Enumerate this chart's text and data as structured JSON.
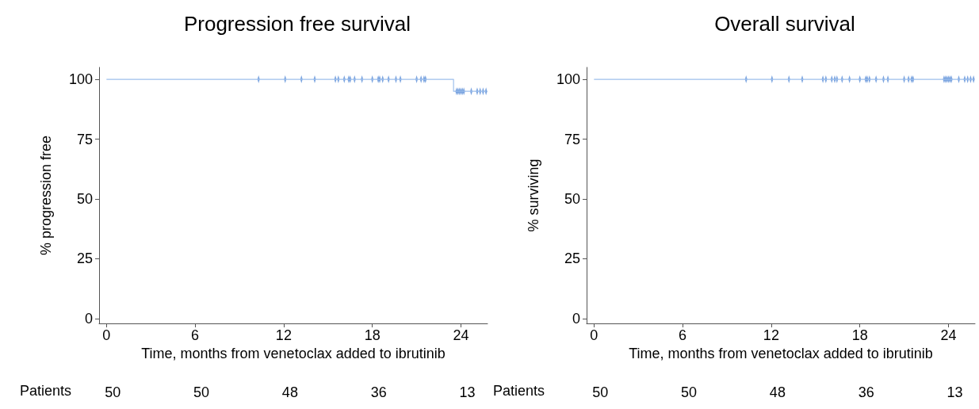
{
  "chart_data": [
    {
      "type": "step",
      "title": "Progression free survival",
      "xlabel": "Time, months from venetoclax added to ibrutinib",
      "ylabel": "% progression free",
      "xlim": [
        -0.5,
        25.8
      ],
      "xticks": [
        0,
        6,
        12,
        18,
        24
      ],
      "ylim": [
        -2,
        105
      ],
      "yticks": [
        0,
        25,
        50,
        75,
        100
      ],
      "grid": false,
      "series": [
        {
          "color": "#9dbfec",
          "x": [
            0,
            23.5,
            25.7
          ],
          "values": [
            100,
            95,
            95
          ]
        },
        {
          "type": "scatter",
          "marker": "diamond",
          "color": "#5b8fd8",
          "x": [
            10.3,
            12.1,
            13.2,
            14.1,
            15.5,
            15.7,
            16.1,
            16.4,
            16.5,
            16.8,
            17.3,
            18.0,
            18.4,
            18.5,
            18.7,
            19.1,
            19.6,
            19.9,
            21.0,
            21.3,
            21.5,
            21.6,
            23.7,
            23.8,
            23.9,
            24.0,
            24.1,
            24.2,
            24.7,
            25.1,
            25.3,
            25.5,
            25.7
          ],
          "values": [
            100,
            100,
            100,
            100,
            100,
            100,
            100,
            100,
            100,
            100,
            100,
            100,
            100,
            100,
            100,
            100,
            100,
            100,
            100,
            100,
            100,
            100,
            95,
            95,
            95,
            95,
            95,
            95,
            95,
            95,
            95,
            95,
            95
          ]
        }
      ],
      "annotations": [
        "Patients",
        "50",
        "50",
        "48",
        "36",
        "13"
      ]
    },
    {
      "type": "step",
      "title": "Overall survival",
      "xlabel": "Time, months from venetoclax added to ibrutinib",
      "ylabel": "% surviving",
      "xlim": [
        -0.5,
        25.8
      ],
      "xticks": [
        0,
        6,
        12,
        18,
        24
      ],
      "ylim": [
        -2,
        105
      ],
      "yticks": [
        0,
        25,
        50,
        75,
        100
      ],
      "grid": false,
      "series": [
        {
          "color": "#9dbfec",
          "x": [
            0,
            25.7
          ],
          "values": [
            100,
            100
          ]
        },
        {
          "type": "scatter",
          "marker": "diamond",
          "color": "#5b8fd8",
          "x": [
            10.3,
            12.05,
            13.2,
            14.1,
            15.5,
            15.7,
            16.1,
            16.3,
            16.45,
            16.8,
            17.3,
            18.0,
            18.4,
            18.5,
            18.65,
            19.1,
            19.6,
            19.9,
            21.0,
            21.3,
            21.5,
            21.6,
            23.7,
            23.8,
            23.9,
            24.0,
            24.1,
            24.2,
            24.7,
            25.1,
            25.3,
            25.5,
            25.7
          ],
          "values": [
            100,
            100,
            100,
            100,
            100,
            100,
            100,
            100,
            100,
            100,
            100,
            100,
            100,
            100,
            100,
            100,
            100,
            100,
            100,
            100,
            100,
            100,
            100,
            100,
            100,
            100,
            100,
            100,
            100,
            100,
            100,
            100,
            100
          ]
        }
      ],
      "annotations": [
        "Patients",
        "50",
        "50",
        "48",
        "36",
        "13"
      ]
    }
  ]
}
